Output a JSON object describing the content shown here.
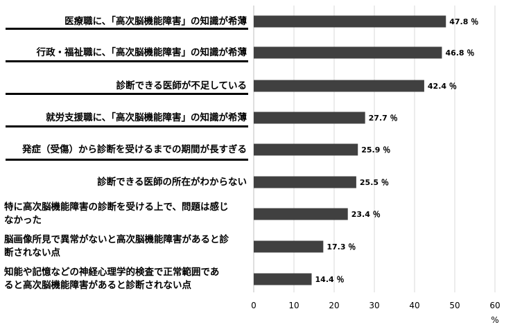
{
  "chart_data": {
    "type": "bar",
    "orientation": "horizontal",
    "categories": [
      "医療職に、「高次脳機能障害」の知識が希薄",
      "行政・福祉職に、「高次脳機能障害」の知識が希薄",
      "診断できる医師が不足している",
      "就労支援職に、「高次脳機能障害」の知識が希薄",
      "発症（受傷）から診断を受けるまでの期間が長すぎる",
      "診断できる医師の所在がわからない",
      "特に高次脳機能障害の診断を受ける上で、問題は感じなかった",
      "脳画像所見で異常がないと高次脳機能障害があると診断されない点",
      "知能や記憶などの神経心理学的検査で正常範囲であると高次脳機能障害があると診断されない点"
    ],
    "category_lines": [
      [
        "医療職に、「高次脳機能障害」の知識が希薄"
      ],
      [
        "行政・福祉職に、「高次脳機能障害」の知識が希薄"
      ],
      [
        "診断できる医師が不足している"
      ],
      [
        "就労支援職に、「高次脳機能障害」の知識が希薄"
      ],
      [
        "発症（受傷）から診断を受けるまでの期間が長すぎる"
      ],
      [
        "診断できる医師の所在がわからない"
      ],
      [
        "特に高次脳機能障害の診断を受ける上で、問題は感じ",
        "なかった"
      ],
      [
        "脳画像所見で異常がないと高次脳機能障害があると診",
        "断されない点"
      ],
      [
        "知能や記憶などの神経心理学的検査で正常範囲であ",
        "ると高次脳機能障害があると診断されない点"
      ]
    ],
    "underlined": [
      true,
      true,
      true,
      true,
      true,
      false,
      false,
      false,
      false
    ],
    "values": [
      47.8,
      46.8,
      42.4,
      27.7,
      25.9,
      25.5,
      23.4,
      17.3,
      14.4
    ],
    "value_labels": [
      "47.8 ％",
      "46.8 ％",
      "42.4 ％",
      "27.7 ％",
      "25.9 ％",
      "25.5 ％",
      "23.4 ％",
      "17.3 ％",
      "14.4 ％"
    ],
    "xlim": [
      0,
      60
    ],
    "xticks": [
      0,
      10,
      20,
      30,
      40,
      50,
      60
    ],
    "xunit": "%",
    "grid": true,
    "bar_color": "#404040",
    "grid_color": "#d9d9d9"
  }
}
